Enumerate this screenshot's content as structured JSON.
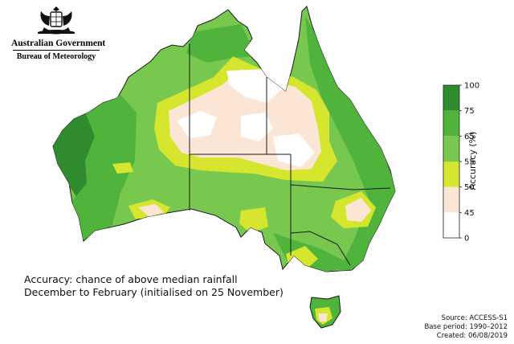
{
  "header": {
    "government_name": "Australian Government",
    "bureau_name": "Bureau of Meteorology"
  },
  "map": {
    "caption_line1": "Accuracy: chance of above median rainfall",
    "caption_line2": "December to February  (initialised on 25 November)"
  },
  "legend": {
    "label": "Accuracy (%)",
    "ticks": [
      "100",
      "75",
      "65",
      "55",
      "50",
      "45",
      "0"
    ],
    "bands": [
      {
        "from": 75,
        "to": 100,
        "color": "#2e8b2e"
      },
      {
        "from": 65,
        "to": 75,
        "color": "#4fb33c"
      },
      {
        "from": 55,
        "to": 65,
        "color": "#78c850"
      },
      {
        "from": 50,
        "to": 55,
        "color": "#d6e62e"
      },
      {
        "from": 45,
        "to": 50,
        "color": "#fbe6d6"
      },
      {
        "from": 0,
        "to": 45,
        "color": "#ffffff"
      }
    ]
  },
  "footer": {
    "source": "Source: ACCESS-S1",
    "base_period": "Base period: 1990–2012",
    "created": "Created: 06/08/2019"
  }
}
